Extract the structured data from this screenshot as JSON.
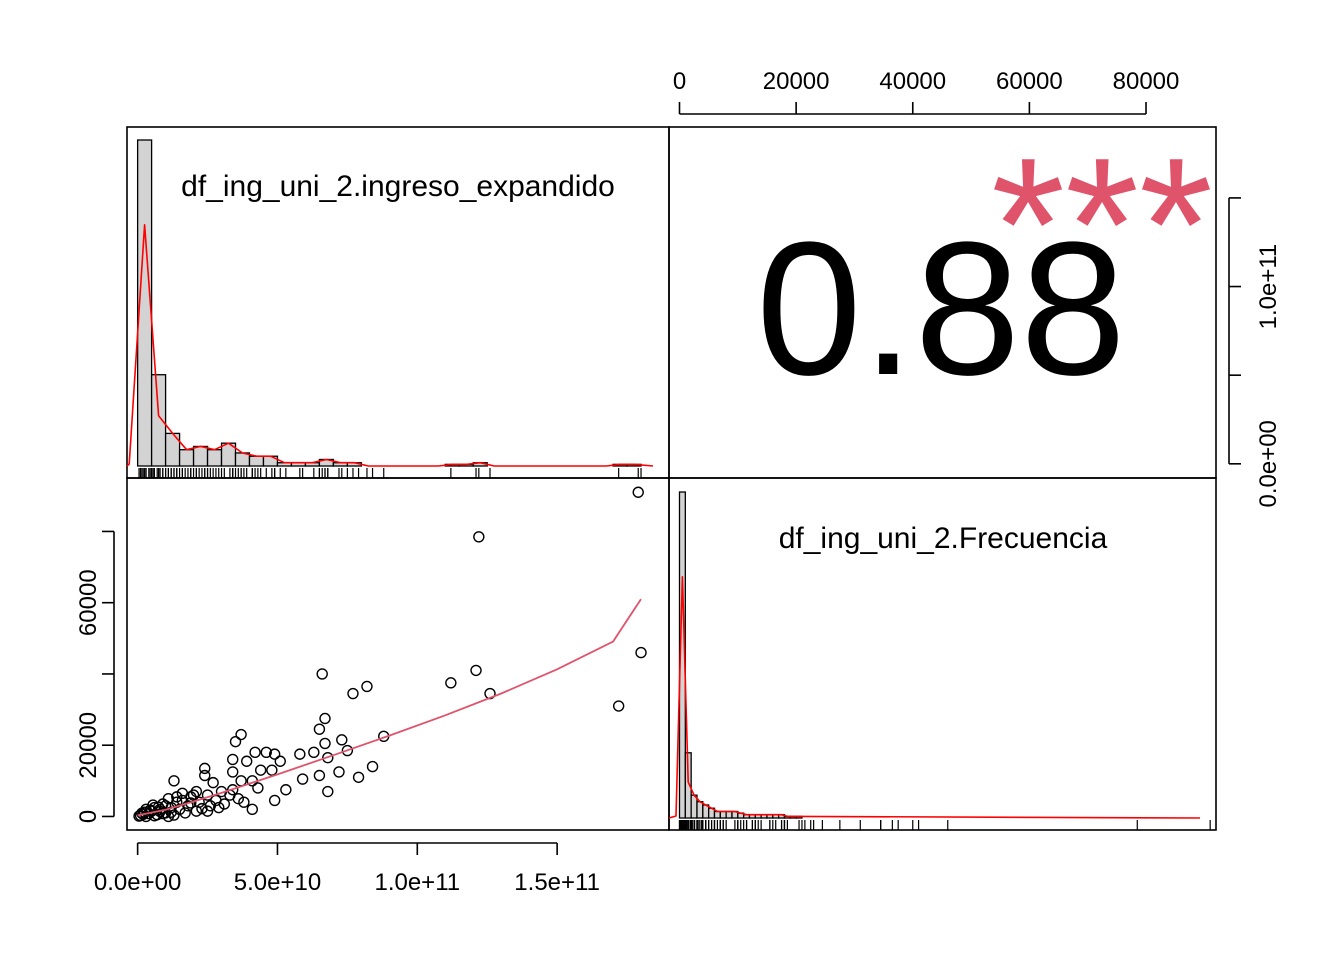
{
  "chart_data": {
    "type": "scatter-matrix",
    "variables": [
      "df_ing_uni_2.ingreso_expandido",
      "df_ing_uni_2.Frecuencia"
    ],
    "correlation": {
      "value_label": "0.88",
      "significance": "***",
      "significance_color": "#DF536B"
    },
    "x_axis_bottom": {
      "ticks": [
        0,
        50000000000,
        100000000000,
        150000000000
      ],
      "tick_labels": [
        "0.0e+00",
        "5.0e+10",
        "1.0e+11",
        "1.5e+11"
      ],
      "range": [
        -3800000000,
        190000000000
      ]
    },
    "x_axis_top": {
      "ticks": [
        0,
        20000,
        40000,
        60000,
        80000
      ],
      "tick_labels": [
        "0",
        "20000",
        "40000",
        "60000",
        "80000"
      ],
      "range": [
        -1800,
        92000
      ]
    },
    "y_axis_left": {
      "ticks": [
        0,
        20000,
        40000,
        60000,
        80000
      ],
      "tick_labels": [
        "0",
        "20000",
        "",
        "60000",
        ""
      ],
      "range": [
        -3800,
        95000
      ]
    },
    "y_axis_right": {
      "ticks": [
        0,
        50000000000,
        100000000000,
        150000000000
      ],
      "tick_labels": [
        "0.0e+00",
        "",
        "1.0e+11",
        ""
      ],
      "range": [
        -8000000000,
        190000000000
      ]
    },
    "histogram_ingreso": {
      "bin_width": 5000000000,
      "bin_starts": [
        0,
        5000000000,
        10000000000,
        15000000000,
        20000000000,
        25000000000,
        30000000000,
        35000000000,
        40000000000,
        45000000000,
        50000000000,
        55000000000,
        60000000000,
        65000000000,
        70000000000,
        75000000000,
        80000000000,
        85000000000,
        90000000000,
        95000000000,
        100000000000,
        105000000000,
        110000000000,
        115000000000,
        120000000000,
        125000000000,
        130000000000,
        135000000000,
        140000000000,
        145000000000,
        150000000000,
        155000000000,
        160000000000,
        165000000000,
        170000000000,
        175000000000
      ],
      "relative_heights": [
        1.0,
        0.28,
        0.1,
        0.05,
        0.06,
        0.05,
        0.07,
        0.04,
        0.03,
        0.03,
        0.01,
        0.01,
        0.01,
        0.02,
        0.01,
        0.01,
        0.0,
        0.0,
        0.0,
        0.0,
        0.0,
        0.0,
        0.005,
        0.005,
        0.01,
        0.0,
        0.0,
        0.0,
        0.0,
        0.0,
        0.0,
        0.0,
        0.0,
        0.0,
        0.005,
        0.005
      ],
      "density_color": "#FF0000"
    },
    "histogram_frecuencia": {
      "bin_width": 1000,
      "bin_starts": [
        0,
        1000,
        2000,
        3000,
        4000,
        5000,
        6000,
        7000,
        8000,
        9000,
        10000,
        11000,
        12000,
        13000,
        14000,
        15000,
        16000,
        17000,
        18000,
        19000,
        20000
      ],
      "relative_heights": [
        1.0,
        0.2,
        0.07,
        0.05,
        0.04,
        0.03,
        0.02,
        0.02,
        0.02,
        0.02,
        0.015,
        0.01,
        0.01,
        0.01,
        0.01,
        0.01,
        0.01,
        0.01,
        0.005,
        0.005,
        0.005
      ],
      "density_color": "#FF0000"
    },
    "scatter": {
      "x_variable": "df_ing_uni_2.ingreso_expandido",
      "y_variable": "df_ing_uni_2.Frecuencia",
      "points": [
        {
          "x": 179000000000,
          "y": 91000
        },
        {
          "x": 122000000000,
          "y": 78500
        },
        {
          "x": 180000000000,
          "y": 46000
        },
        {
          "x": 121000000000,
          "y": 41000
        },
        {
          "x": 112000000000,
          "y": 37500
        },
        {
          "x": 126000000000,
          "y": 34500
        },
        {
          "x": 172000000000,
          "y": 31000
        },
        {
          "x": 66000000000,
          "y": 40000
        },
        {
          "x": 82000000000,
          "y": 36500
        },
        {
          "x": 77000000000,
          "y": 34500
        },
        {
          "x": 67000000000,
          "y": 27500
        },
        {
          "x": 65000000000,
          "y": 24500
        },
        {
          "x": 88000000000,
          "y": 22500
        },
        {
          "x": 73000000000,
          "y": 21500
        },
        {
          "x": 67000000000,
          "y": 20500
        },
        {
          "x": 75000000000,
          "y": 18500
        },
        {
          "x": 63000000000,
          "y": 18000
        },
        {
          "x": 68000000000,
          "y": 16500
        },
        {
          "x": 58000000000,
          "y": 17500
        },
        {
          "x": 84000000000,
          "y": 14000
        },
        {
          "x": 72000000000,
          "y": 12500
        },
        {
          "x": 79000000000,
          "y": 11000
        },
        {
          "x": 65000000000,
          "y": 11500
        },
        {
          "x": 59000000000,
          "y": 10500
        },
        {
          "x": 68000000000,
          "y": 7000
        },
        {
          "x": 53000000000,
          "y": 7500
        },
        {
          "x": 49000000000,
          "y": 4500
        },
        {
          "x": 37000000000,
          "y": 23000
        },
        {
          "x": 35000000000,
          "y": 21000
        },
        {
          "x": 42000000000,
          "y": 18000
        },
        {
          "x": 46000000000,
          "y": 18000
        },
        {
          "x": 49000000000,
          "y": 17500
        },
        {
          "x": 51000000000,
          "y": 15500
        },
        {
          "x": 34000000000,
          "y": 16000
        },
        {
          "x": 39000000000,
          "y": 15500
        },
        {
          "x": 48000000000,
          "y": 13000
        },
        {
          "x": 44000000000,
          "y": 13000
        },
        {
          "x": 34000000000,
          "y": 12500
        },
        {
          "x": 24000000000,
          "y": 13500
        },
        {
          "x": 24000000000,
          "y": 11500
        },
        {
          "x": 37000000000,
          "y": 10000
        },
        {
          "x": 41000000000,
          "y": 10000
        },
        {
          "x": 13000000000,
          "y": 10000
        },
        {
          "x": 27000000000,
          "y": 9500
        },
        {
          "x": 43000000000,
          "y": 8000
        },
        {
          "x": 34000000000,
          "y": 7500
        },
        {
          "x": 30000000000,
          "y": 7000
        },
        {
          "x": 21000000000,
          "y": 7000
        },
        {
          "x": 16000000000,
          "y": 6500
        },
        {
          "x": 25000000000,
          "y": 6000
        },
        {
          "x": 33000000000,
          "y": 6000
        },
        {
          "x": 19000000000,
          "y": 5500
        },
        {
          "x": 36000000000,
          "y": 5000
        },
        {
          "x": 28000000000,
          "y": 4500
        },
        {
          "x": 11000000000,
          "y": 5000
        },
        {
          "x": 22000000000,
          "y": 4000
        },
        {
          "x": 38000000000,
          "y": 4000
        },
        {
          "x": 31000000000,
          "y": 3500
        },
        {
          "x": 14000000000,
          "y": 4000
        },
        {
          "x": 26000000000,
          "y": 3000
        },
        {
          "x": 41000000000,
          "y": 2000
        },
        {
          "x": 29000000000,
          "y": 2500
        },
        {
          "x": 18000000000,
          "y": 3000
        },
        {
          "x": 9000000000,
          "y": 3500
        },
        {
          "x": 12000000000,
          "y": 2500
        },
        {
          "x": 15000000000,
          "y": 2000
        },
        {
          "x": 21000000000,
          "y": 1500
        },
        {
          "x": 25000000000,
          "y": 1500
        },
        {
          "x": 8000000000,
          "y": 2000
        },
        {
          "x": 6000000000,
          "y": 2500
        },
        {
          "x": 5000000000,
          "y": 1500
        },
        {
          "x": 3000000000,
          "y": 2000
        },
        {
          "x": 10000000000,
          "y": 1000
        },
        {
          "x": 7000000000,
          "y": 500
        },
        {
          "x": 4000000000,
          "y": 800
        },
        {
          "x": 2000000000,
          "y": 600
        },
        {
          "x": 1000000000,
          "y": 300
        },
        {
          "x": 500000000,
          "y": 100
        },
        {
          "x": 3000000000,
          "y": 0
        },
        {
          "x": 6000000000,
          "y": 200
        },
        {
          "x": 9000000000,
          "y": 800
        },
        {
          "x": 12000000000,
          "y": 1200
        },
        {
          "x": 13000000000,
          "y": 400
        },
        {
          "x": 17000000000,
          "y": 1000
        },
        {
          "x": 11000000000,
          "y": 0
        },
        {
          "x": 8000000000,
          "y": 1400
        },
        {
          "x": 4500000000,
          "y": 1800
        },
        {
          "x": 2500000000,
          "y": 1200
        },
        {
          "x": 1500000000,
          "y": 900
        },
        {
          "x": 7500000000,
          "y": 2600
        },
        {
          "x": 10000000000,
          "y": 3000
        },
        {
          "x": 14000000000,
          "y": 5500
        },
        {
          "x": 5500000000,
          "y": 3200
        },
        {
          "x": 19000000000,
          "y": 3800
        },
        {
          "x": 23000000000,
          "y": 2200
        },
        {
          "x": 16000000000,
          "y": 4500
        },
        {
          "x": 20000000000,
          "y": 6000
        }
      ],
      "fit_line": {
        "x": [
          0,
          10000000000,
          20000000000,
          30000000000,
          50000000000,
          70000000000,
          90000000000,
          110000000000,
          130000000000,
          150000000000,
          170000000000,
          180000000000
        ],
        "y": [
          300,
          1900,
          4200,
          6600,
          11800,
          17200,
          22700,
          28400,
          34500,
          41300,
          49100,
          61000
        ],
        "color": "#DF536B"
      }
    }
  }
}
